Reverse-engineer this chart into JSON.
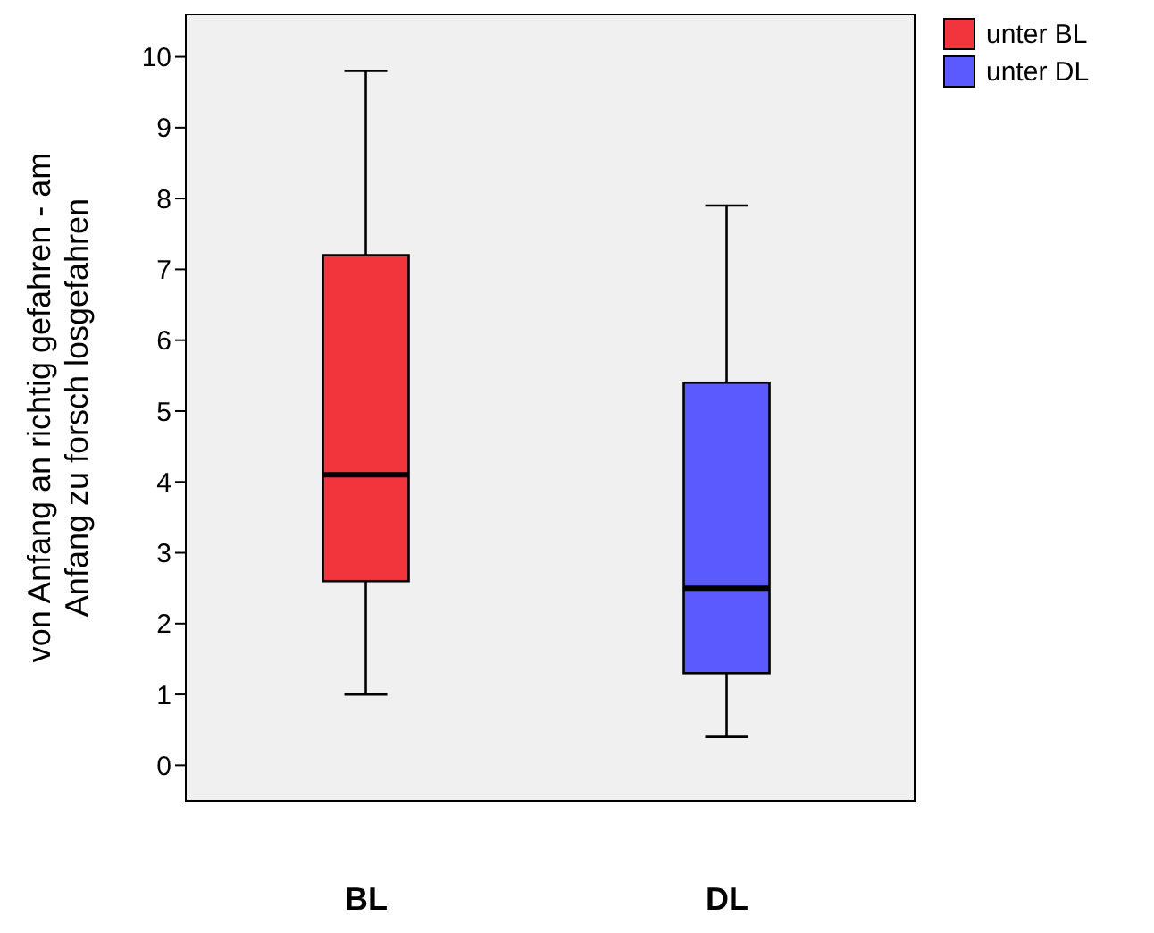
{
  "chart_data": {
    "type": "box",
    "ylabel": "von Anfang an richtig gefahren - am Anfang zu forsch losgefahren",
    "categories": [
      "BL",
      "DL"
    ],
    "series": [
      {
        "name": "unter BL",
        "color": "#f2353c",
        "boxes": [
          {
            "low": 1.0,
            "q1": 2.6,
            "median": 4.1,
            "q3": 7.2,
            "high": 9.8
          },
          null
        ]
      },
      {
        "name": "unter DL",
        "color": "#5a5aff",
        "boxes": [
          null,
          {
            "low": 0.4,
            "q1": 1.3,
            "median": 2.5,
            "q3": 5.4,
            "high": 7.9
          }
        ]
      }
    ],
    "ylim": [
      -0.5,
      10.6
    ],
    "yticks": [
      0,
      1,
      2,
      3,
      4,
      5,
      6,
      7,
      8,
      9,
      10
    ],
    "legend": "right"
  }
}
